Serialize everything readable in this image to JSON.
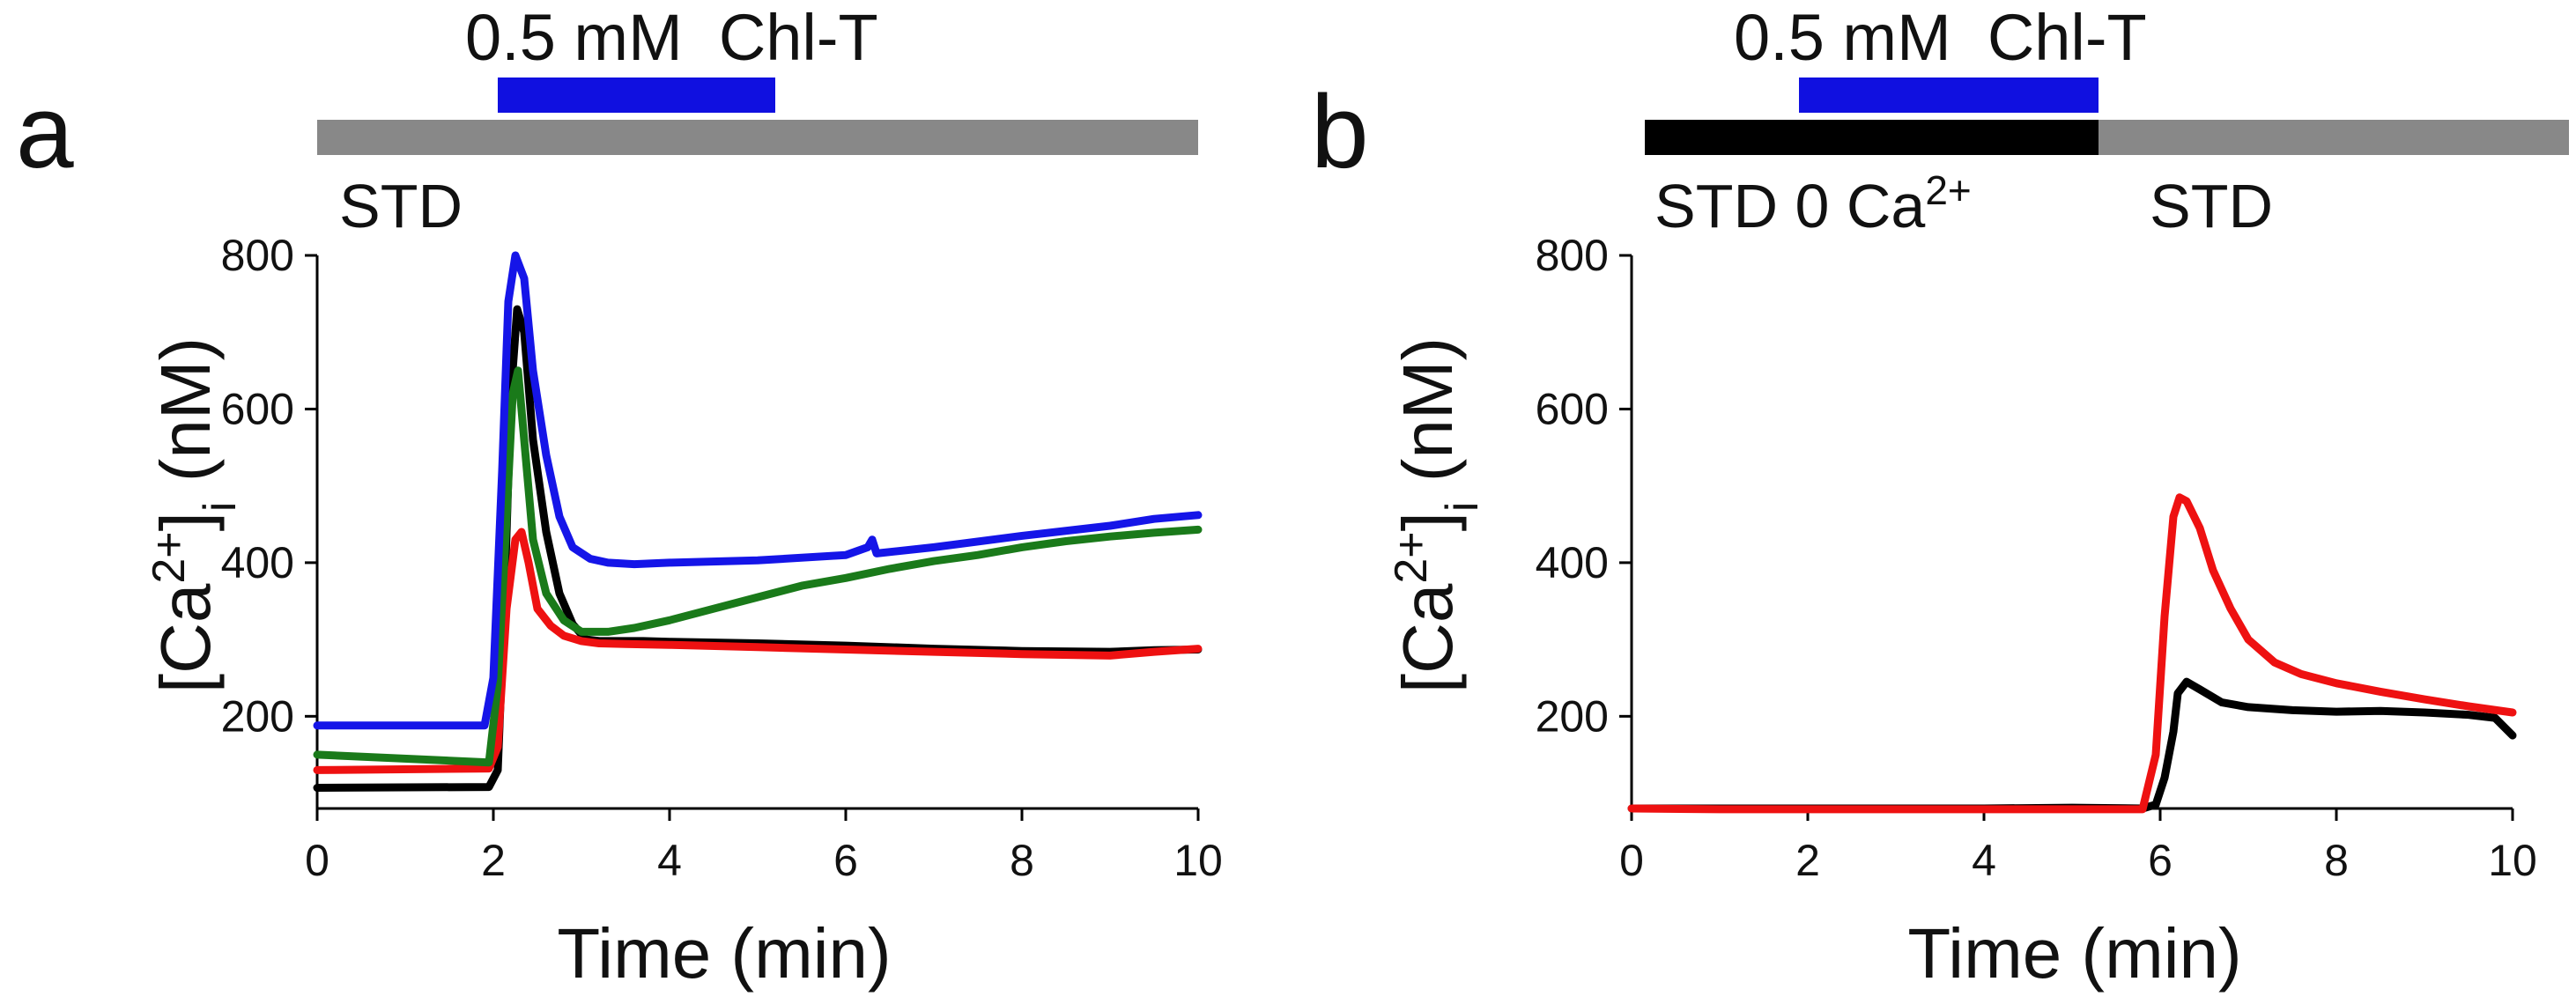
{
  "chart_data": [
    {
      "type": "line",
      "panel_label": "a",
      "drug_label": "0.5 mM  Chl-T",
      "solution_label": "STD",
      "xlabel": "Time (min)",
      "ylabel": "[Ca2+]i (nM)",
      "xlim": [
        0,
        10
      ],
      "ylim": [
        80,
        800
      ],
      "xticks": [
        "0",
        "2",
        "4",
        "6",
        "8",
        "10"
      ],
      "yticks": [
        "200",
        "400",
        "600",
        "800"
      ],
      "drug_bar": {
        "start": 2.05,
        "end": 5.2,
        "color": "#1010e0"
      },
      "solution_bars": [
        {
          "label": "STD",
          "start": 0,
          "end": 10,
          "color": "#888888"
        }
      ],
      "series": [
        {
          "name": "black",
          "color": "#000000",
          "x": [
            0,
            1.95,
            2.05,
            2.12,
            2.2,
            2.27,
            2.35,
            2.45,
            2.6,
            2.75,
            2.9,
            3.05,
            3.2,
            3.4,
            3.7,
            4,
            5,
            6,
            7,
            8,
            9,
            9.5,
            10
          ],
          "y": [
            107,
            108,
            130,
            330,
            620,
            730,
            700,
            560,
            440,
            360,
            320,
            300,
            298,
            298,
            298,
            297,
            295,
            292,
            288,
            285,
            284,
            286,
            287
          ]
        },
        {
          "name": "red",
          "color": "#ee1111",
          "x": [
            0,
            1.95,
            2.05,
            2.15,
            2.25,
            2.32,
            2.4,
            2.5,
            2.65,
            2.8,
            3,
            3.2,
            3.5,
            4,
            5,
            6,
            7,
            8,
            9,
            9.5,
            10
          ],
          "y": [
            130,
            132,
            160,
            340,
            430,
            440,
            400,
            340,
            318,
            305,
            298,
            295,
            294,
            293,
            290,
            287,
            284,
            281,
            279,
            284,
            288
          ]
        },
        {
          "name": "green",
          "color": "#1a7a1a",
          "x": [
            0,
            1.95,
            2.05,
            2.15,
            2.22,
            2.28,
            2.35,
            2.45,
            2.6,
            2.8,
            3,
            3.3,
            3.6,
            4,
            4.5,
            5,
            5.5,
            6,
            6.5,
            7,
            7.5,
            8,
            8.5,
            9,
            9.5,
            10
          ],
          "y": [
            150,
            140,
            240,
            460,
            620,
            650,
            560,
            430,
            360,
            325,
            310,
            310,
            315,
            325,
            340,
            355,
            370,
            380,
            392,
            402,
            410,
            420,
            428,
            434,
            439,
            443
          ]
        },
        {
          "name": "blue",
          "color": "#1515e8",
          "x": [
            0,
            1.9,
            2,
            2.1,
            2.17,
            2.25,
            2.35,
            2.45,
            2.6,
            2.75,
            2.9,
            3.1,
            3.3,
            3.6,
            4,
            5,
            6,
            6.25,
            6.3,
            6.35,
            7,
            8,
            9,
            9.5,
            10
          ],
          "y": [
            188,
            188,
            250,
            520,
            740,
            800,
            770,
            650,
            540,
            460,
            420,
            405,
            400,
            398,
            400,
            403,
            410,
            420,
            430,
            412,
            420,
            435,
            448,
            457,
            462
          ]
        }
      ]
    },
    {
      "type": "line",
      "panel_label": "b",
      "drug_label": "0.5 mM  Chl-T",
      "solution_label_1": "STD 0 Ca",
      "solution_label_1_sup": "2+",
      "solution_label_2": "STD",
      "xlabel": "Time (min)",
      "ylabel": "[Ca2+]i (nM)",
      "xlim": [
        0,
        10
      ],
      "ylim": [
        80,
        800
      ],
      "xticks": [
        "0",
        "2",
        "4",
        "6",
        "8",
        "10"
      ],
      "yticks": [
        "200",
        "400",
        "600",
        "800"
      ],
      "drug_bar": {
        "start": 1.9,
        "end": 5.3,
        "color": "#1010e0"
      },
      "solution_bars": [
        {
          "label": "STD 0 Ca2+",
          "start": 0.15,
          "end": 5.3,
          "color": "#000000"
        },
        {
          "label": "STD",
          "start": 5.3,
          "end": 10.7,
          "color": "#888888"
        }
      ],
      "series": [
        {
          "name": "black",
          "color": "#000000",
          "x": [
            0,
            1,
            2,
            3,
            4,
            5,
            5.8,
            5.95,
            6.05,
            6.15,
            6.2,
            6.3,
            6.45,
            6.7,
            7,
            7.5,
            8,
            8.5,
            9,
            9.5,
            9.8,
            10
          ],
          "y": [
            80,
            80,
            80,
            80,
            80,
            81,
            80,
            85,
            120,
            180,
            230,
            245,
            235,
            218,
            212,
            208,
            206,
            207,
            205,
            202,
            198,
            175
          ]
        },
        {
          "name": "red",
          "color": "#ee1111",
          "x": [
            0,
            1,
            2,
            3,
            4,
            5,
            5.8,
            5.95,
            6.05,
            6.15,
            6.22,
            6.3,
            6.45,
            6.6,
            6.8,
            7,
            7.3,
            7.6,
            8,
            8.5,
            9,
            9.5,
            10
          ],
          "y": [
            80,
            79,
            79,
            79,
            79,
            79,
            79,
            150,
            330,
            460,
            485,
            480,
            445,
            390,
            340,
            300,
            270,
            255,
            243,
            232,
            222,
            213,
            205
          ]
        }
      ]
    }
  ]
}
